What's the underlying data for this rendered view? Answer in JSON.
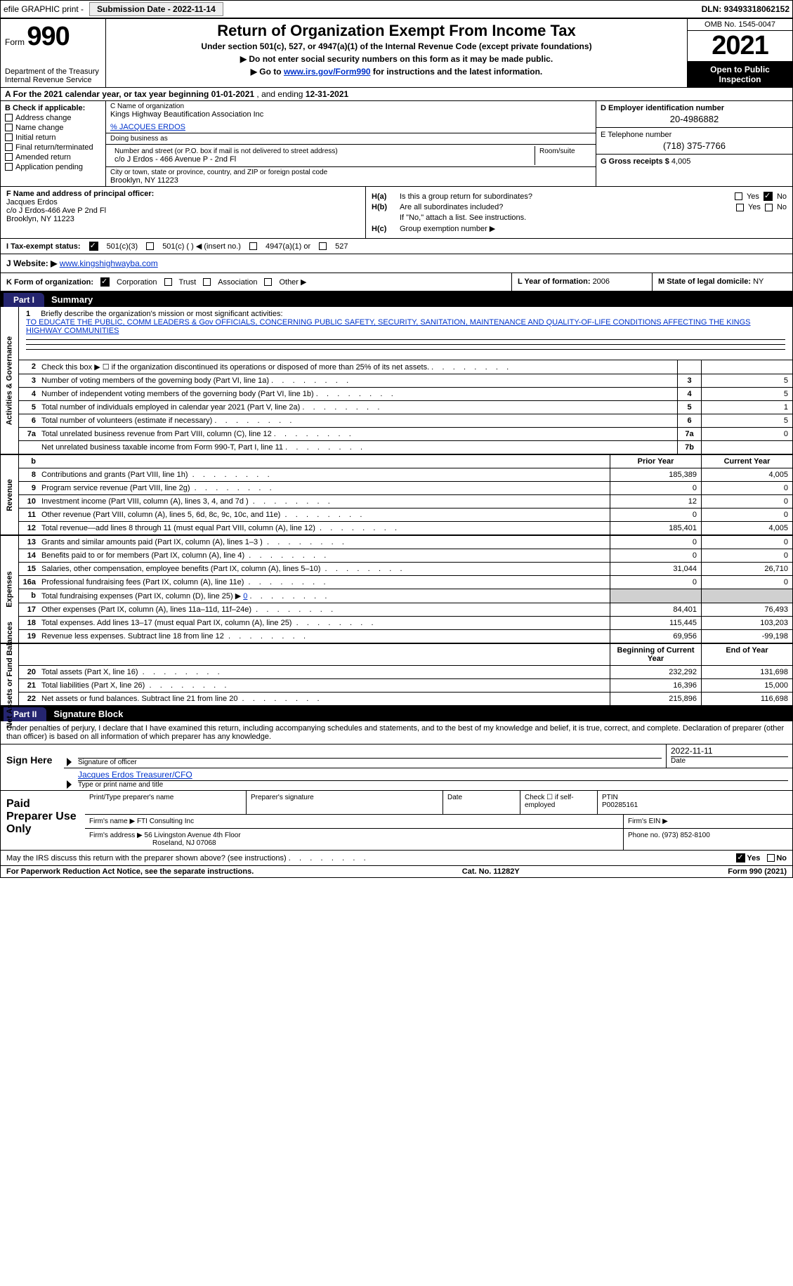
{
  "topbar": {
    "efile": "efile GRAPHIC print -",
    "submission_label": "Submission Date - 2022-11-14",
    "dln": "DLN: 93493318062152"
  },
  "header": {
    "form_label": "Form",
    "form_number": "990",
    "dept": "Department of the Treasury\nInternal Revenue Service",
    "title": "Return of Organization Exempt From Income Tax",
    "sub1": "Under section 501(c), 527, or 4947(a)(1) of the Internal Revenue Code (except private foundations)",
    "sub2": "▶ Do not enter social security numbers on this form as it may be made public.",
    "sub3_pre": "▶ Go to ",
    "sub3_link": "www.irs.gov/Form990",
    "sub3_post": " for instructions and the latest information.",
    "omb": "OMB No. 1545-0047",
    "year": "2021",
    "open": "Open to Public Inspection"
  },
  "row_a": {
    "label": "A For the 2021 calendar year, or tax year beginning ",
    "begin": "01-01-2021",
    "mid": " , and ending ",
    "end": "12-31-2021"
  },
  "col_b": {
    "header": "B Check if applicable:",
    "items": [
      "Address change",
      "Name change",
      "Initial return",
      "Final return/terminated",
      "Amended return",
      "Application pending"
    ]
  },
  "col_c": {
    "name_label": "C Name of organization",
    "name": "Kings Highway Beautification Association Inc",
    "care_label": "% JACQUES ERDOS",
    "dba_label": "Doing business as",
    "addr_label": "Number and street (or P.O. box if mail is not delivered to street address)",
    "room_label": "Room/suite",
    "addr": "c/o J Erdos - 466 Avenue P - 2nd Fl",
    "city_label": "City or town, state or province, country, and ZIP or foreign postal code",
    "city": "Brooklyn, NY  11223"
  },
  "col_d": {
    "ein_label": "D Employer identification number",
    "ein": "20-4986882",
    "phone_label": "E Telephone number",
    "phone": "(718) 375-7766",
    "gross_label": "G Gross receipts $ ",
    "gross": "4,005"
  },
  "block_f": {
    "label": "F  Name and address of principal officer:",
    "name": "Jacques Erdos",
    "addr1": "c/o J Erdos-466 Ave P 2nd Fl",
    "addr2": "Brooklyn, NY  11223"
  },
  "block_h": {
    "ha_label": "H(a)",
    "ha_text": "Is this a group return for subordinates?",
    "hb_label": "H(b)",
    "hb_text": "Are all subordinates included?",
    "hb_note": "If \"No,\" attach a list. See instructions.",
    "hc_label": "H(c)",
    "hc_text": "Group exemption number ▶"
  },
  "row_i": {
    "label": "I  Tax-exempt status:",
    "opt1": "501(c)(3)",
    "opt2": "501(c) (  ) ◀ (insert no.)",
    "opt3": "4947(a)(1) or",
    "opt4": "527"
  },
  "row_j": {
    "label": "J  Website: ▶ ",
    "url": "www.kingshighwayba.com"
  },
  "row_k": {
    "label": "K Form of organization:",
    "opts": [
      "Corporation",
      "Trust",
      "Association",
      "Other ▶"
    ],
    "l_label": "L Year of formation: ",
    "l_val": "2006",
    "m_label": "M State of legal domicile: ",
    "m_val": "NY"
  },
  "part1": {
    "tab": "Part I",
    "title": "Summary"
  },
  "mission": {
    "num": "1",
    "prompt": "Briefly describe the organization's mission or most significant activities:",
    "text": "TO EDUCATE THE PUBLIC, COMM LEADERS & Gov OFFICIALS, CONCERNING PUBLIC SAFETY, SECURITY, SANITATION, MAINTENANCE AND QUALITY-OF-LIFE CONDITIONS AFFECTING THE KINGS HIGHWAY COMMUNITIES"
  },
  "activities": {
    "vlabel": "Activities & Governance",
    "rows": [
      {
        "num": "2",
        "desc": "Check this box ▶ ☐  if the organization discontinued its operations or disposed of more than 25% of its net assets.",
        "box": "",
        "val": ""
      },
      {
        "num": "3",
        "desc": "Number of voting members of the governing body (Part VI, line 1a)",
        "box": "3",
        "val": "5"
      },
      {
        "num": "4",
        "desc": "Number of independent voting members of the governing body (Part VI, line 1b)",
        "box": "4",
        "val": "5"
      },
      {
        "num": "5",
        "desc": "Total number of individuals employed in calendar year 2021 (Part V, line 2a)",
        "box": "5",
        "val": "1"
      },
      {
        "num": "6",
        "desc": "Total number of volunteers (estimate if necessary)",
        "box": "6",
        "val": "5"
      },
      {
        "num": "7a",
        "desc": "Total unrelated business revenue from Part VIII, column (C), line 12",
        "box": "7a",
        "val": "0"
      },
      {
        "num": "",
        "desc": "Net unrelated business taxable income from Form 990-T, Part I, line 11",
        "box": "7b",
        "val": ""
      }
    ]
  },
  "revenue": {
    "vlabel": "Revenue",
    "header": {
      "b": "b",
      "prior": "Prior Year",
      "current": "Current Year"
    },
    "rows": [
      {
        "num": "8",
        "desc": "Contributions and grants (Part VIII, line 1h)",
        "prior": "185,389",
        "current": "4,005"
      },
      {
        "num": "9",
        "desc": "Program service revenue (Part VIII, line 2g)",
        "prior": "0",
        "current": "0"
      },
      {
        "num": "10",
        "desc": "Investment income (Part VIII, column (A), lines 3, 4, and 7d )",
        "prior": "12",
        "current": "0"
      },
      {
        "num": "11",
        "desc": "Other revenue (Part VIII, column (A), lines 5, 6d, 8c, 9c, 10c, and 11e)",
        "prior": "0",
        "current": "0"
      },
      {
        "num": "12",
        "desc": "Total revenue—add lines 8 through 11 (must equal Part VIII, column (A), line 12)",
        "prior": "185,401",
        "current": "4,005"
      }
    ]
  },
  "expenses": {
    "vlabel": "Expenses",
    "rows": [
      {
        "num": "13",
        "desc": "Grants and similar amounts paid (Part IX, column (A), lines 1–3 )",
        "prior": "0",
        "current": "0"
      },
      {
        "num": "14",
        "desc": "Benefits paid to or for members (Part IX, column (A), line 4)",
        "prior": "0",
        "current": "0"
      },
      {
        "num": "15",
        "desc": "Salaries, other compensation, employee benefits (Part IX, column (A), lines 5–10)",
        "prior": "31,044",
        "current": "26,710"
      },
      {
        "num": "16a",
        "desc": "Professional fundraising fees (Part IX, column (A), line 11e)",
        "prior": "0",
        "current": "0"
      },
      {
        "num": "b",
        "desc": "Total fundraising expenses (Part IX, column (D), line 25) ▶",
        "sub": "0",
        "prior": "",
        "current": "",
        "grey": true
      },
      {
        "num": "17",
        "desc": "Other expenses (Part IX, column (A), lines 11a–11d, 11f–24e)",
        "prior": "84,401",
        "current": "76,493"
      },
      {
        "num": "18",
        "desc": "Total expenses. Add lines 13–17 (must equal Part IX, column (A), line 25)",
        "prior": "115,445",
        "current": "103,203"
      },
      {
        "num": "19",
        "desc": "Revenue less expenses. Subtract line 18 from line 12",
        "prior": "69,956",
        "current": "-99,198"
      }
    ]
  },
  "netassets": {
    "vlabel": "Net Assets or Fund Balances",
    "header": {
      "begin": "Beginning of Current Year",
      "end": "End of Year"
    },
    "rows": [
      {
        "num": "20",
        "desc": "Total assets (Part X, line 16)",
        "prior": "232,292",
        "current": "131,698"
      },
      {
        "num": "21",
        "desc": "Total liabilities (Part X, line 26)",
        "prior": "16,396",
        "current": "15,000"
      },
      {
        "num": "22",
        "desc": "Net assets or fund balances. Subtract line 21 from line 20",
        "prior": "215,896",
        "current": "116,698"
      }
    ]
  },
  "part2": {
    "tab": "Part II",
    "title": "Signature Block"
  },
  "sig_intro": "Under penalties of perjury, I declare that I have examined this return, including accompanying schedules and statements, and to the best of my knowledge and belief, it is true, correct, and complete. Declaration of preparer (other than officer) is based on all information of which preparer has any knowledge.",
  "sign": {
    "label": "Sign Here",
    "sig_label": "Signature of officer",
    "date_val": "2022-11-11",
    "date_label": "Date",
    "name": "Jacques Erdos  Treasurer/CFO",
    "name_label": "Type or print name and title"
  },
  "prep": {
    "label": "Paid Preparer Use Only",
    "r1": {
      "name_label": "Print/Type preparer's name",
      "sig_label": "Preparer's signature",
      "date_label": "Date",
      "check_label": "Check ☐ if self-employed",
      "ptin_label": "PTIN",
      "ptin": "P00285161"
    },
    "r2": {
      "firm_label": "Firm's name  ▶ ",
      "firm": "FTI Consulting Inc",
      "ein_label": "Firm's EIN ▶"
    },
    "r3": {
      "addr_label": "Firm's address ▶ ",
      "addr1": "56 Livingston Avenue 4th Floor",
      "addr2": "Roseland, NJ  07068",
      "phone_label": "Phone no. ",
      "phone": "(973) 852-8100"
    }
  },
  "discuss": {
    "text": "May the IRS discuss this return with the preparer shown above? (see instructions)",
    "yes": "Yes",
    "no": "No"
  },
  "footer": {
    "left": "For Paperwork Reduction Act Notice, see the separate instructions.",
    "mid": "Cat. No. 11282Y",
    "right": "Form 990 (2021)"
  }
}
